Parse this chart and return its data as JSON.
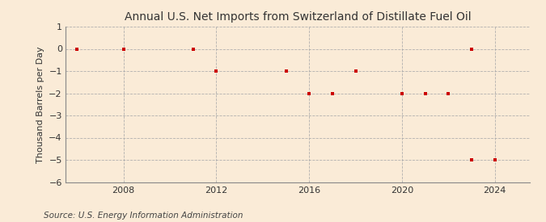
{
  "title": "Annual U.S. Net Imports from Switzerland of Distillate Fuel Oil",
  "ylabel": "Thousand Barrels per Day",
  "source": "Source: U.S. Energy Information Administration",
  "background_color": "#faebd7",
  "plot_bg_color": "#faebd7",
  "marker_color": "#cc0000",
  "grid_color": "#aaaaaa",
  "xlim": [
    2005.5,
    2025.5
  ],
  "ylim": [
    -6,
    1
  ],
  "yticks": [
    1,
    0,
    -1,
    -2,
    -3,
    -4,
    -5,
    -6
  ],
  "xticks": [
    2008,
    2012,
    2016,
    2020,
    2024
  ],
  "data_x": [
    2006,
    2008,
    2011,
    2012,
    2015,
    2016,
    2017,
    2018,
    2020,
    2021,
    2022,
    2023,
    2023,
    2024
  ],
  "data_y": [
    0,
    0,
    0,
    -1,
    -1,
    -2,
    -2,
    -1,
    -2,
    -2,
    -2,
    0,
    -5,
    -5
  ],
  "title_fontsize": 10,
  "label_fontsize": 8,
  "tick_fontsize": 8,
  "source_fontsize": 7.5
}
